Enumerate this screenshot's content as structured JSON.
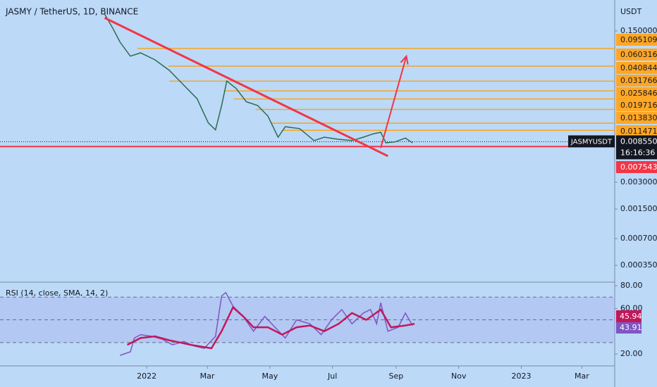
{
  "chart_data": [
    {
      "type": "line",
      "title": "JASMY / TetherUS, 1D, BINANCE",
      "currency": "USDT",
      "log_scale": true,
      "xlim": [
        -143,
        456
      ],
      "xticks": [
        {
          "value": 0,
          "label": "2022"
        },
        {
          "value": 59,
          "label": "Mar"
        },
        {
          "value": 120,
          "label": "May"
        },
        {
          "value": 181,
          "label": "Jul"
        },
        {
          "value": 243,
          "label": "Sep"
        },
        {
          "value": 304,
          "label": "Nov"
        },
        {
          "value": 365,
          "label": "2023"
        },
        {
          "value": 424,
          "label": "Mar"
        }
      ],
      "ylim": [
        0.000231,
        0.333
      ],
      "yticks": [
        {
          "value": 0.15,
          "label": "0.150000"
        },
        {
          "value": 0.003,
          "label": "0.003000"
        },
        {
          "value": 0.0015,
          "label": "0.001500"
        },
        {
          "value": 0.0007,
          "label": "0.000700"
        },
        {
          "value": 0.00035,
          "label": "0.000350"
        }
      ],
      "series": [
        {
          "name": "JASMYUSDT",
          "color": "#2e6b4f",
          "x": [
            -41,
            -33,
            -26,
            -16,
            -6,
            8,
            22,
            35,
            49,
            60,
            67,
            73,
            78,
            87,
            97,
            108,
            118,
            128,
            135,
            149,
            163,
            173,
            187,
            200,
            211,
            221,
            228,
            233,
            242,
            252,
            259
          ],
          "values": [
            0.231,
            0.16,
            0.112,
            0.078,
            0.085,
            0.071,
            0.054,
            0.038,
            0.026,
            0.0139,
            0.0116,
            0.0218,
            0.041,
            0.034,
            0.024,
            0.0218,
            0.0166,
            0.0096,
            0.0126,
            0.012,
            0.0088,
            0.0096,
            0.0091,
            0.0088,
            0.0096,
            0.0105,
            0.0109,
            0.0083,
            0.0085,
            0.0094,
            0.0083
          ]
        }
      ],
      "last_price": {
        "value": 0.00855,
        "label": "0.008550",
        "countdown": "16:16:36"
      },
      "levels": {
        "color": "#f5a623",
        "x": [
          -9,
          21,
          22,
          75,
          85,
          106,
          121,
          132
        ],
        "values": [
          0.095109,
          0.060316,
          0.040844,
          0.031766,
          0.025846,
          0.019716,
          0.01383,
          0.011471
        ],
        "value_labels": [
          "0.095109",
          "0.060316",
          "0.040844",
          "0.031766",
          "0.025846",
          "0.019716",
          "0.013830",
          "0.011471"
        ]
      },
      "support": {
        "color": "#f23645",
        "value": 0.007543,
        "label": "0.007543"
      },
      "trendline": {
        "color": "#f23645",
        "x": [
          -41,
          235
        ],
        "values": [
          0.21,
          0.0059
        ]
      },
      "arrow": {
        "color": "#f23645",
        "x": [
          228,
          253
        ],
        "values": [
          0.0073,
          0.078
        ]
      }
    },
    {
      "type": "line",
      "title": "RSI (14, close, SMA, 14, 2)",
      "xlim": [
        -143,
        456
      ],
      "ylim": [
        9.5,
        81.9
      ],
      "yticks": [
        {
          "value": 80,
          "label": "80.00"
        },
        {
          "value": 60,
          "label": "60.00"
        },
        {
          "value": 20,
          "label": "20.00"
        }
      ],
      "bands": [
        70,
        50,
        30
      ],
      "band_fill": "#a9b8ee",
      "series": [
        {
          "color": "#7e57c2",
          "last": {
            "value": 43.91,
            "label": "43.91"
          },
          "x": [
            -26,
            -16,
            -12,
            -6,
            5,
            15,
            25,
            36,
            46,
            56,
            67,
            73,
            77,
            84,
            94,
            104,
            115,
            125,
            135,
            146,
            159,
            170,
            180,
            190,
            200,
            211,
            218,
            224,
            228,
            235,
            245,
            252,
            259
          ],
          "values": [
            18.8,
            21.9,
            34,
            37,
            35.5,
            33,
            28,
            31,
            27,
            25,
            35.5,
            71,
            74,
            62,
            53,
            40,
            53,
            43.5,
            34,
            50,
            46.5,
            37,
            50,
            59,
            46.5,
            56,
            59,
            46.5,
            65,
            40,
            43.5,
            56,
            45
          ]
        },
        {
          "color": "#c2185b",
          "last": {
            "value": 45.94,
            "label": "45.94"
          },
          "x": [
            -19,
            -6,
            8,
            22,
            43,
            63,
            73,
            84,
            94,
            104,
            118,
            132,
            146,
            159,
            173,
            187,
            200,
            214,
            228,
            238,
            252,
            261
          ],
          "values": [
            28,
            34,
            35.5,
            32,
            28,
            25,
            40,
            61,
            53,
            43.5,
            43.5,
            37,
            43.5,
            45,
            40,
            46.5,
            56,
            50,
            59,
            43.5,
            45,
            46.5
          ]
        }
      ]
    }
  ]
}
